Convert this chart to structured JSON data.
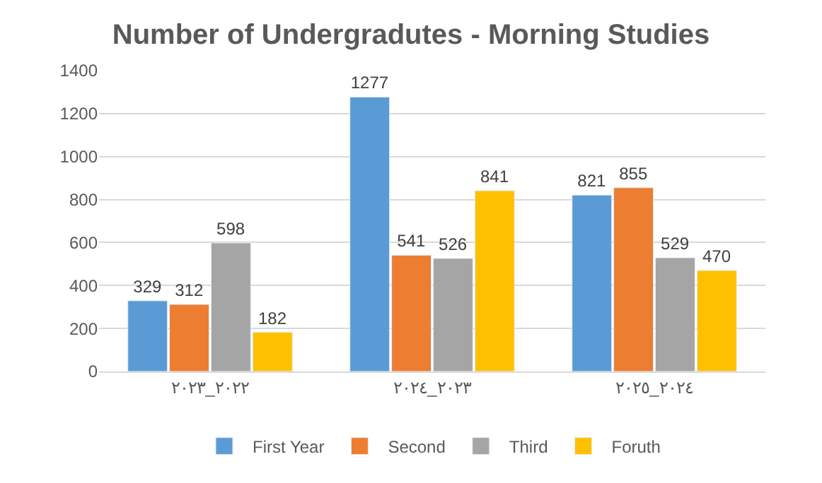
{
  "chart_data": {
    "type": "bar",
    "title": "Number of Undergradutes - Morning Studies",
    "categories": [
      "٢٠٢٢_٢٠٢٣",
      "٢٠٢٣_٢٠٢٤",
      "٢٠٢٤_٢٠٢٥"
    ],
    "series": [
      {
        "name": "First Year",
        "color": "#5b9bd5",
        "values": [
          329,
          1277,
          821
        ]
      },
      {
        "name": "Second",
        "color": "#ed7d31",
        "values": [
          312,
          541,
          855
        ]
      },
      {
        "name": "Third",
        "color": "#a5a5a5",
        "values": [
          598,
          526,
          529
        ]
      },
      {
        "name": "Foruth",
        "color": "#ffc000",
        "values": [
          182,
          841,
          470
        ]
      }
    ],
    "ylim": [
      0,
      1400
    ],
    "yticks": [
      0,
      200,
      400,
      600,
      800,
      1000,
      1200,
      1400
    ],
    "grid": "y",
    "legend": "bottom",
    "data_labels": true
  }
}
